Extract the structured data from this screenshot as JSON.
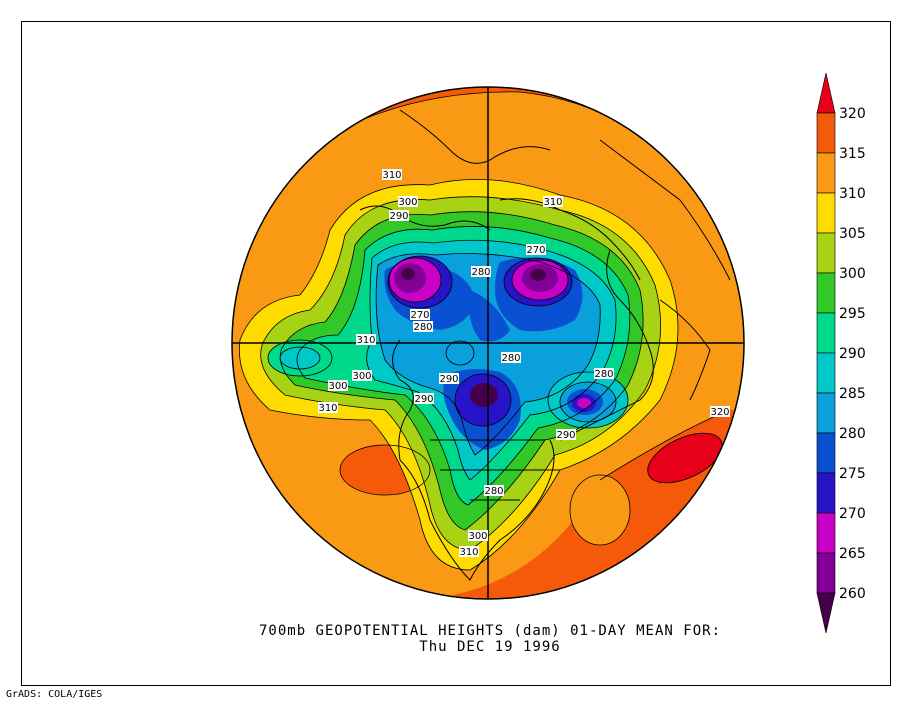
{
  "caption": {
    "line1": "700mb GEOPOTENTIAL HEIGHTS (dam)   01-DAY MEAN FOR:",
    "line2": "Thu DEC 19 1996"
  },
  "footer": "GrADS: COLA/IGES",
  "colorbar": {
    "levels": [
      {
        "label": "",
        "color": "#e8001a"
      },
      {
        "label": "320",
        "color": "#f55a0a"
      },
      {
        "label": "315",
        "color": "#fa9a14"
      },
      {
        "label": "310",
        "color": "#ffdc00"
      },
      {
        "label": "305",
        "color": "#a8d214"
      },
      {
        "label": "300",
        "color": "#32c828"
      },
      {
        "label": "295",
        "color": "#00d98c"
      },
      {
        "label": "290",
        "color": "#00c8c8"
      },
      {
        "label": "285",
        "color": "#0aa0dc"
      },
      {
        "label": "280",
        "color": "#0a50d2"
      },
      {
        "label": "275",
        "color": "#2814c8"
      },
      {
        "label": "270",
        "color": "#c800c8"
      },
      {
        "label": "265",
        "color": "#820096"
      },
      {
        "label": "260",
        "color": "#46004b"
      }
    ]
  },
  "contour_labels": [
    {
      "text": "310"
    },
    {
      "text": "300"
    },
    {
      "text": "290"
    },
    {
      "text": "310"
    },
    {
      "text": "270"
    },
    {
      "text": "280"
    },
    {
      "text": "270"
    },
    {
      "text": "280"
    },
    {
      "text": "310"
    },
    {
      "text": "300"
    },
    {
      "text": "300"
    },
    {
      "text": "310"
    },
    {
      "text": "290"
    },
    {
      "text": "290"
    },
    {
      "text": "280"
    },
    {
      "text": "280"
    },
    {
      "text": "290"
    },
    {
      "text": "320"
    },
    {
      "text": "280"
    },
    {
      "text": "300"
    },
    {
      "text": "310"
    }
  ]
}
